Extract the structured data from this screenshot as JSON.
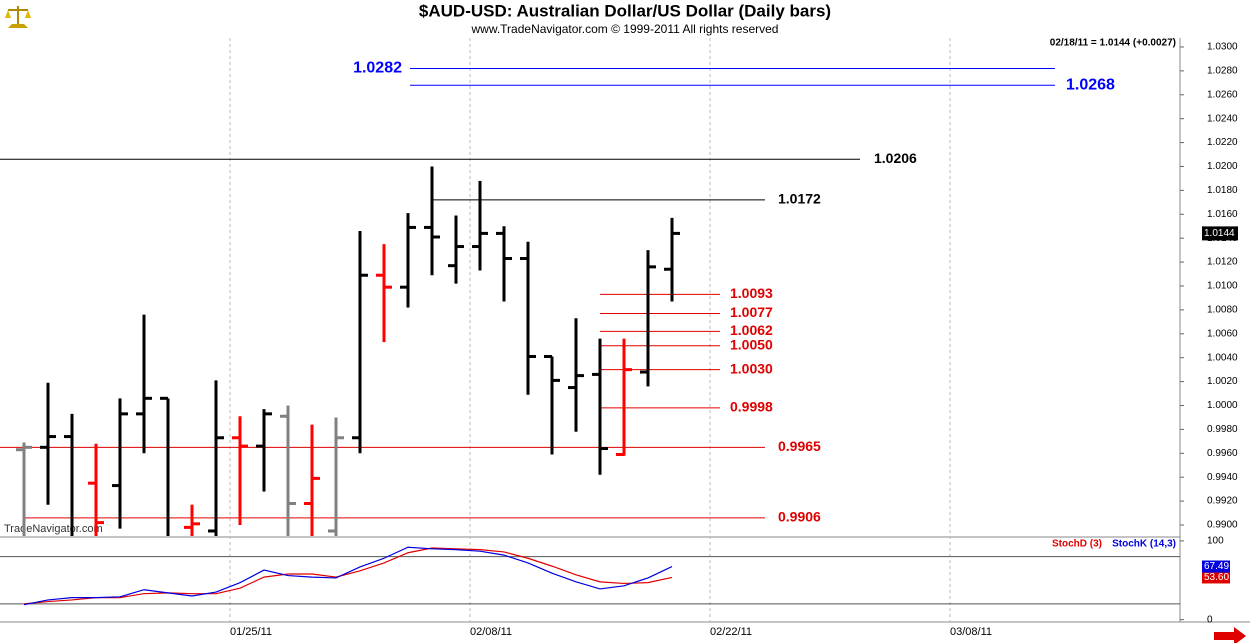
{
  "chart_data": [
    {
      "type": "ohlc",
      "title": "$AUD-USD:  Australian Dollar/US Dollar  (Daily bars)",
      "subtitle": "www.TradeNavigator.com © 1999-2011 All rights reserved",
      "info": "02/18/11 = 1.0144 (+0.0027)",
      "watermark": "TradeNavigator.com",
      "open": [
        0.9963,
        0.9965,
        0.9974,
        0.9935,
        0.9933,
        0.9993,
        1.0006,
        0.9898,
        0.9895,
        0.9973,
        0.9966,
        0.9991,
        0.9918,
        0.9895,
        0.9973,
        1.0109,
        1.0099,
        1.0149,
        1.0117,
        1.0133,
        1.0144,
        1.0123,
        1.0041,
        1.0015,
        1.0026,
        0.9959,
        1.0028,
        1.0114
      ],
      "high": [
        0.9969,
        1.0019,
        0.9993,
        0.9968,
        1.0006,
        1.0076,
        1.0006,
        0.9917,
        1.0021,
        0.9991,
        0.9997,
        1.0,
        0.9984,
        0.999,
        1.0146,
        1.0135,
        1.0161,
        1.02,
        1.0159,
        1.0188,
        1.015,
        1.0137,
        1.0041,
        1.0073,
        1.0056,
        1.0056,
        1.013,
        1.0157
      ],
      "low": [
        0.988,
        0.9917,
        0.988,
        0.9885,
        0.9897,
        0.996,
        0.988,
        0.988,
        0.988,
        0.99,
        0.9928,
        0.988,
        0.988,
        0.988,
        0.996,
        1.0053,
        1.0082,
        1.0109,
        1.0102,
        1.0113,
        1.0087,
        1.0009,
        0.9959,
        0.9978,
        0.9942,
        0.9958,
        1.0016,
        1.0087
      ],
      "close": [
        0.9965,
        0.9974,
        0.9885,
        0.9902,
        0.9993,
        1.0006,
        0.9885,
        0.9901,
        0.9973,
        0.9966,
        0.9993,
        0.9918,
        0.9939,
        0.9973,
        1.0109,
        1.0099,
        1.0149,
        1.0141,
        1.0133,
        1.0144,
        1.0123,
        1.0041,
        1.0021,
        1.0025,
        0.9964,
        1.003,
        1.0116,
        1.0144
      ],
      "bar_colors": [
        "#808080",
        "#000000",
        "#000000",
        "#ff0000",
        "#000000",
        "#000000",
        "#000000",
        "#ff0000",
        "#000000",
        "#ff0000",
        "#000000",
        "#808080",
        "#ff0000",
        "#808080",
        "#000000",
        "#ff0000",
        "#000000",
        "#000000",
        "#000000",
        "#000000",
        "#000000",
        "#000000",
        "#000000",
        "#000000",
        "#000000",
        "#ff0000",
        "#000000",
        "#000000"
      ],
      "xlim": [
        -1,
        48.1667
      ],
      "xticks": [
        {
          "value": 9,
          "label": "01/25/11"
        },
        {
          "value": 19,
          "label": "02/08/11"
        },
        {
          "value": 29,
          "label": "02/22/11"
        },
        {
          "value": 39,
          "label": "03/08/11"
        }
      ],
      "ylim": [
        0.98908,
        1.03075
      ],
      "yticks": [
        {
          "value": 0.99,
          "label": "0.9900"
        },
        {
          "value": 0.992,
          "label": "0.9920"
        },
        {
          "value": 0.994,
          "label": "0.9940"
        },
        {
          "value": 0.996,
          "label": "0.9960"
        },
        {
          "value": 0.998,
          "label": "0.9980"
        },
        {
          "value": 1.0,
          "label": "1.0000"
        },
        {
          "value": 1.002,
          "label": "1.0020"
        },
        {
          "value": 1.004,
          "label": "1.0040"
        },
        {
          "value": 1.006,
          "label": "1.0060"
        },
        {
          "value": 1.008,
          "label": "1.0080"
        },
        {
          "value": 1.01,
          "label": "1.0100"
        },
        {
          "value": 1.012,
          "label": "1.0120"
        },
        {
          "value": 1.014,
          "label": "1.0140"
        },
        {
          "value": 1.016,
          "label": "1.0160"
        },
        {
          "value": 1.018,
          "label": "1.0180"
        },
        {
          "value": 1.02,
          "label": "1.0200"
        },
        {
          "value": 1.022,
          "label": "1.0220"
        },
        {
          "value": 1.024,
          "label": "1.0240"
        },
        {
          "value": 1.026,
          "label": "1.0260"
        },
        {
          "value": 1.028,
          "label": "1.0280"
        },
        {
          "value": 1.03,
          "label": "1.0300"
        }
      ],
      "grid": true,
      "last_value": 1.0144,
      "levels": [
        {
          "value": 1.0282,
          "color": "#0000ff"
        },
        {
          "value": 1.0268,
          "color": "#0000ff"
        },
        {
          "value": 1.0206,
          "color": "#000000"
        },
        {
          "value": 1.0172,
          "color": "#000000"
        },
        {
          "value": 1.0093,
          "color": "#e00000"
        },
        {
          "value": 1.0077,
          "color": "#e00000"
        },
        {
          "value": 1.0062,
          "color": "#e00000"
        },
        {
          "value": 1.005,
          "label": "1.0050",
          "color": "#e00000"
        },
        {
          "value": 1.003,
          "label": "1.0030",
          "color": "#e00000"
        },
        {
          "value": 0.9998,
          "color": "#e00000"
        },
        {
          "value": 0.9965,
          "color": "#e00000"
        },
        {
          "value": 0.9906,
          "color": "#e00000"
        }
      ]
    },
    {
      "type": "line",
      "ylim": [
        -3,
        105
      ],
      "yticks": [
        0,
        100
      ],
      "reference_lines": [
        20,
        80
      ],
      "series": [
        {
          "name": "StochD (3)",
          "color": "#e00000",
          "values": [
            20,
            23,
            25,
            28,
            28,
            33,
            34,
            33,
            33,
            40,
            54,
            58,
            58,
            54,
            62,
            72,
            85,
            91,
            90,
            89,
            86,
            78,
            68,
            57,
            48,
            46,
            47,
            53.6
          ],
          "value_labels": [
            null,
            null,
            null,
            null,
            null,
            null,
            null,
            null,
            null,
            null,
            null,
            null,
            null,
            null,
            null,
            null,
            null,
            null,
            null,
            null,
            null,
            null,
            null,
            null,
            null,
            null,
            null,
            "53.60"
          ]
        },
        {
          "name": "StochK (14,3)",
          "color": "#0000e0",
          "values": [
            19,
            25,
            28,
            28,
            29,
            38,
            34,
            30,
            35,
            47,
            63,
            56,
            54,
            53,
            67,
            78,
            92,
            90,
            89,
            87,
            82,
            72,
            59,
            48,
            39,
            43,
            53,
            67.49
          ]
        }
      ]
    }
  ]
}
